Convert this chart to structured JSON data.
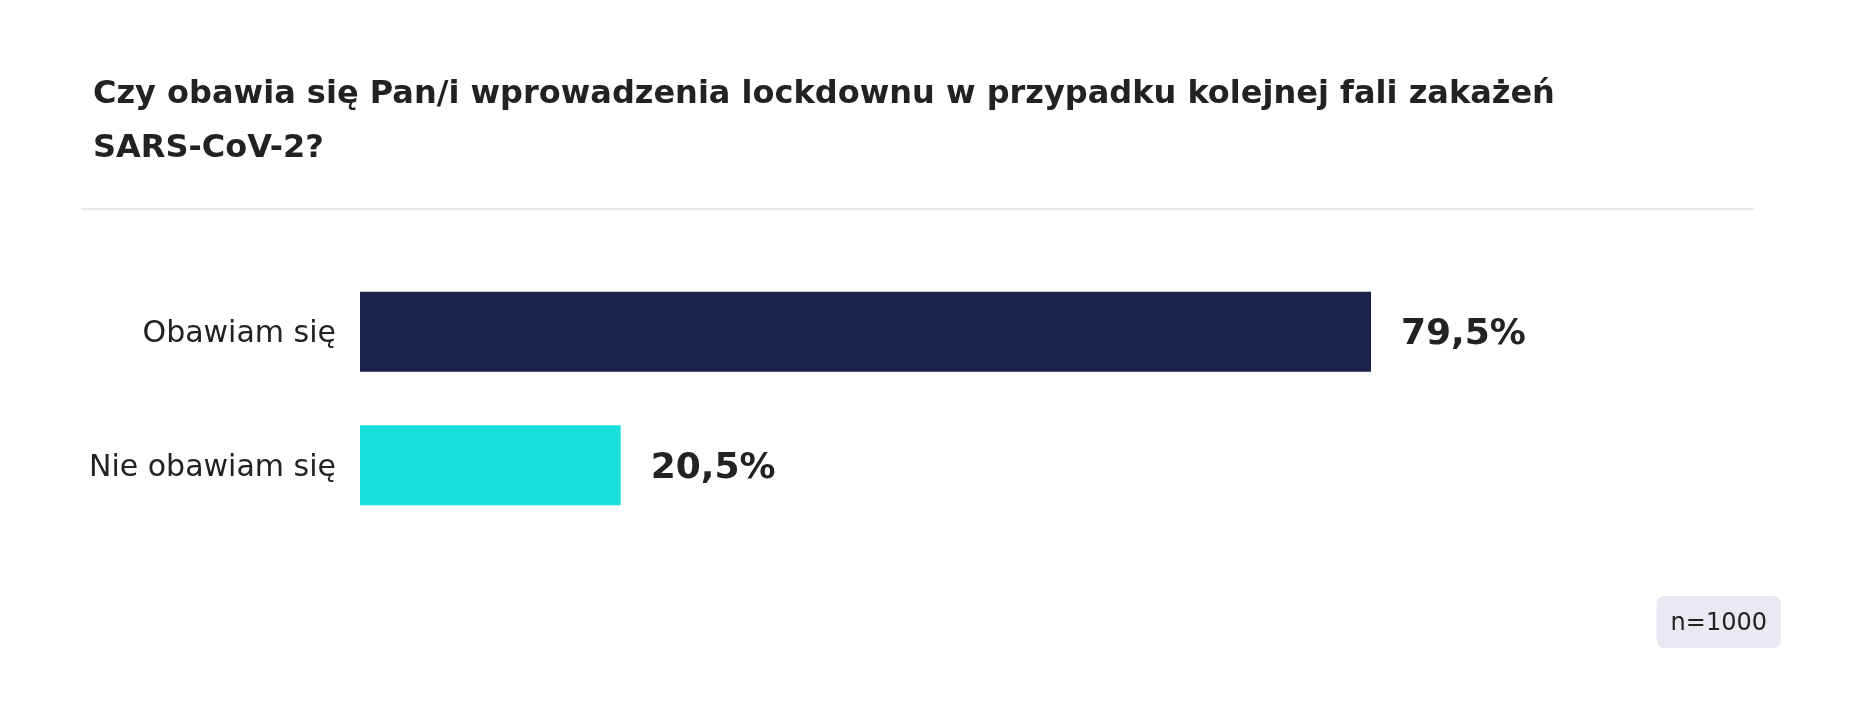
{
  "chart_data": {
    "type": "bar",
    "orientation": "horizontal",
    "title": "Czy obawia się Pan/i wprowadzenia lockdownu w przypadku kolejnej fali zakażeń SARS-CoV-2?",
    "categories": [
      "Obawiam się",
      "Nie obawiam się"
    ],
    "values": [
      79.5,
      20.5
    ],
    "colors": [
      "#19234b",
      "#19e0dc"
    ],
    "value_labels": [
      "79,5%",
      "20,5%"
    ],
    "annotations": [
      "n=1000"
    ]
  }
}
